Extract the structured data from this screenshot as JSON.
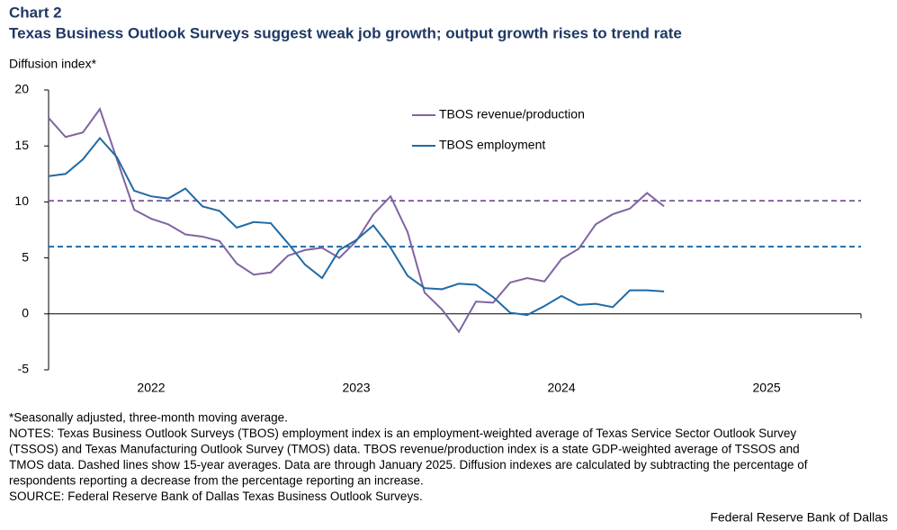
{
  "chart_data": {
    "type": "line",
    "label": "Chart 2",
    "title": "Texas Business Outlook Surveys suggest weak job growth; output growth rises to trend rate",
    "y_label": "Diffusion index*",
    "x": [
      2022,
      2022.083,
      2022.167,
      2022.25,
      2022.333,
      2022.417,
      2022.5,
      2022.583,
      2022.667,
      2022.75,
      2022.833,
      2022.917,
      2023,
      2023.083,
      2023.167,
      2023.25,
      2023.333,
      2023.417,
      2023.5,
      2023.583,
      2023.667,
      2023.75,
      2023.833,
      2023.917,
      2024,
      2024.083,
      2024.167,
      2024.25,
      2024.333,
      2024.417,
      2024.5,
      2024.583,
      2024.667,
      2024.75,
      2024.833,
      2024.917,
      2025
    ],
    "series": [
      {
        "name": "TBOS revenue/production",
        "color": "#8064a2",
        "values": [
          17.5,
          15.8,
          16.2,
          18.3,
          13.8,
          9.3,
          8.5,
          8.0,
          7.1,
          6.9,
          6.5,
          4.5,
          3.5,
          3.7,
          5.2,
          5.7,
          5.9,
          5.0,
          6.5,
          8.9,
          10.5,
          7.3,
          1.9,
          0.4,
          -1.6,
          1.1,
          1.0,
          2.8,
          3.2,
          2.9,
          4.9,
          5.8,
          8.0,
          8.9,
          9.4,
          10.8,
          9.6
        ]
      },
      {
        "name": "TBOS employment",
        "color": "#1f6aa5",
        "values": [
          12.3,
          12.5,
          13.8,
          15.7,
          14.0,
          11.0,
          10.5,
          10.3,
          11.2,
          9.6,
          9.2,
          7.7,
          8.2,
          8.1,
          6.3,
          4.4,
          3.2,
          5.7,
          6.6,
          7.9,
          5.9,
          3.4,
          2.3,
          2.2,
          2.7,
          2.6,
          1.5,
          0.1,
          -0.1,
          0.7,
          1.6,
          0.8,
          0.9,
          0.6,
          2.1,
          2.1,
          2.0
        ]
      }
    ],
    "reference_lines": [
      {
        "value": 10.1,
        "color": "#8064a2"
      },
      {
        "value": 6.0,
        "color": "#1f6aa5"
      }
    ],
    "xlim": [
      2022,
      2025.96
    ],
    "xticks": [
      {
        "value": 2022.5,
        "label": "2022"
      },
      {
        "value": 2023.5,
        "label": "2023"
      },
      {
        "value": 2024.5,
        "label": "2024"
      },
      {
        "value": 2025.5,
        "label": "2025"
      }
    ],
    "ylim": [
      -5,
      20
    ],
    "yticks": [
      -5,
      0,
      5,
      10,
      15,
      20
    ],
    "notes": [
      "*Seasonally adjusted, three-month moving average.",
      "NOTES: Texas Business Outlook Surveys (TBOS) employment index is an employment-weighted average of Texas Service Sector Outlook Survey",
      "(TSSOS) and Texas Manufacturing Outlook Survey (TMOS) data. TBOS revenue/production index is a state GDP-weighted average of TSSOS and",
      "TMOS data. Dashed lines show 15-year averages. Data are through January 2025. Diffusion indexes are calculated by subtracting the percentage of",
      "respondents reporting a decrease from the percentage reporting an increase.",
      "SOURCE: Federal Reserve Bank of Dallas Texas Business Outlook Surveys."
    ],
    "credit": "Federal Reserve Bank of Dallas"
  }
}
